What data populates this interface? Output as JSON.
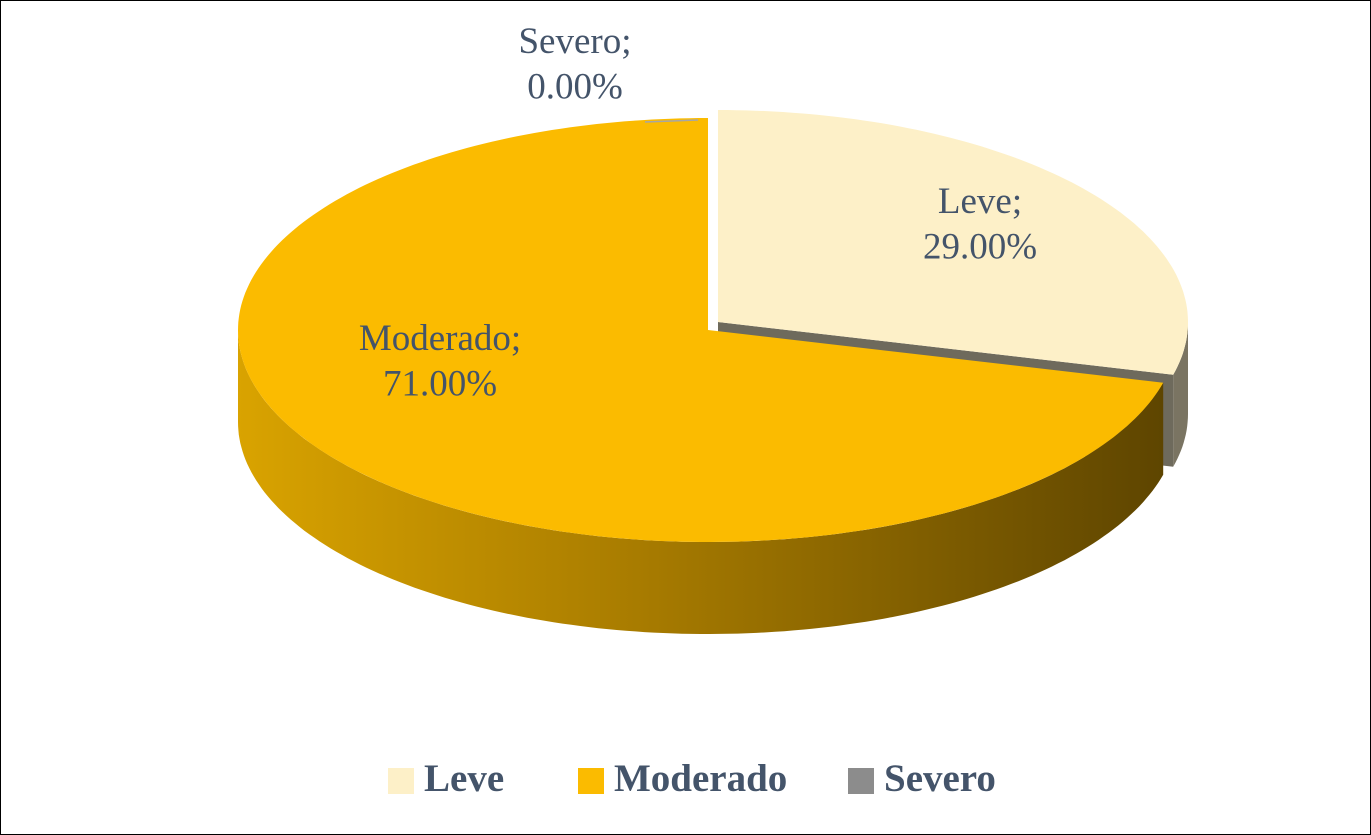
{
  "chart_data": {
    "type": "pie",
    "categories": [
      "Leve",
      "Moderado",
      "Severo"
    ],
    "values": [
      29,
      71,
      0
    ],
    "value_labels": [
      "29.00%",
      "71.00%",
      "0.00%"
    ],
    "data_label_separator": ";",
    "colors": [
      "#fdf0c8",
      "#fbbb00",
      "#8c8c8c"
    ],
    "legend": "bottom"
  }
}
